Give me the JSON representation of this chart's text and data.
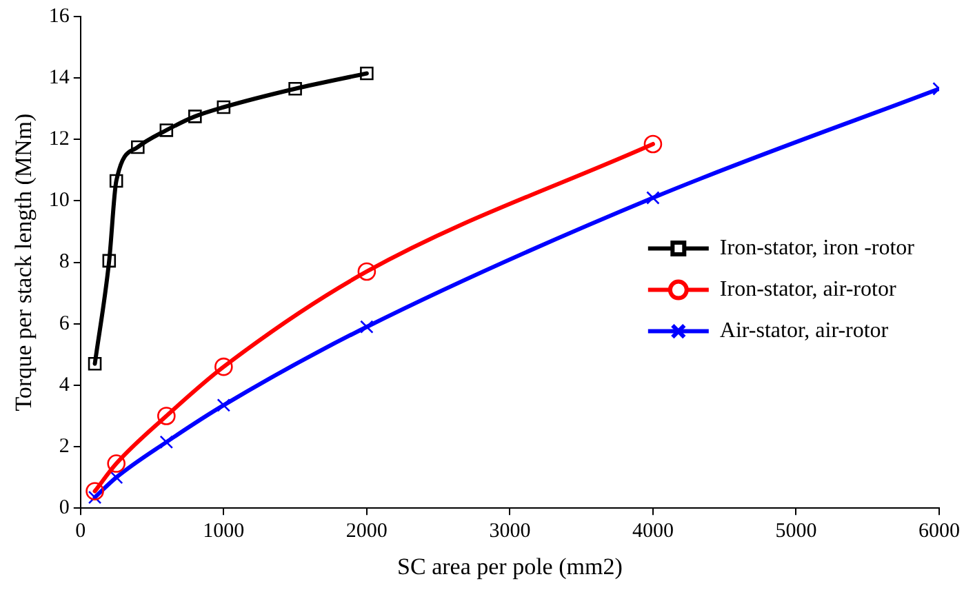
{
  "chart_data": {
    "type": "line",
    "xlabel": "SC area per pole (mm2)",
    "ylabel": "Torque per stack length (MNm)",
    "xlim": [
      0,
      6000
    ],
    "xticks": [
      0,
      1000,
      2000,
      3000,
      4000,
      5000,
      6000
    ],
    "ylim": [
      0,
      16
    ],
    "yticks": [
      0,
      2,
      4,
      6,
      8,
      10,
      12,
      14,
      16
    ],
    "grid": false,
    "legend": "right",
    "line_style": "solid",
    "series": [
      {
        "name": "Iron-stator, iron -rotor",
        "color": "#000000",
        "marker": "square",
        "x": [
          100,
          200,
          250,
          400,
          600,
          800,
          1000,
          1500,
          2000
        ],
        "values": [
          4.7,
          8.05,
          10.65,
          11.75,
          12.3,
          12.75,
          13.05,
          13.65,
          14.15
        ]
      },
      {
        "name": "Iron-stator, air-rotor",
        "color": "#ff0000",
        "marker": "circle",
        "x": [
          100,
          250,
          600,
          1000,
          2000,
          4000
        ],
        "values": [
          0.55,
          1.45,
          3.0,
          4.6,
          7.7,
          11.85
        ]
      },
      {
        "name": "Air-stator, air-rotor",
        "color": "#0000ff",
        "marker": "cross",
        "x": [
          100,
          250,
          600,
          1000,
          2000,
          4000,
          6000
        ],
        "values": [
          0.35,
          1.0,
          2.15,
          3.35,
          5.9,
          10.1,
          13.65
        ]
      }
    ]
  }
}
